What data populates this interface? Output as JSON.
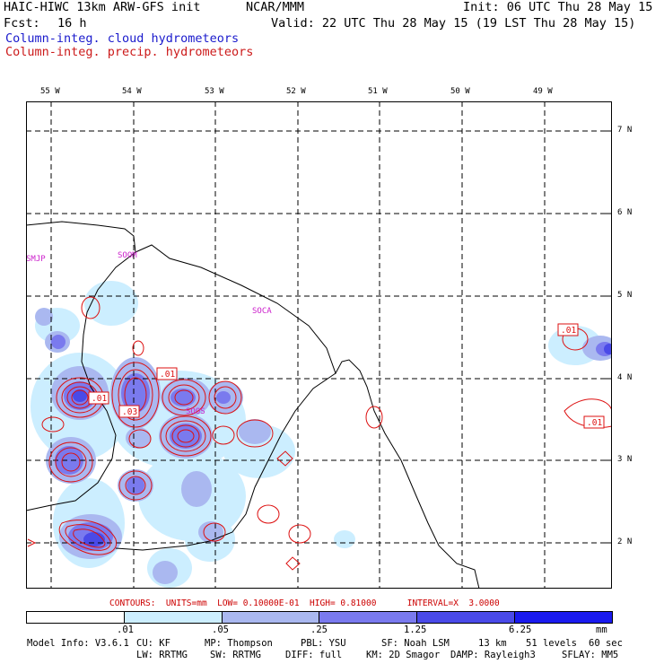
{
  "header": {
    "model": "HAIC-HIWC 13km ARW-GFS init",
    "org": "NCAR/MMM",
    "init": "Init: 06 UTC Thu 28 May 15",
    "fcst_label": "Fcst:",
    "fcst_value": "16 h",
    "valid": "Valid: 22 UTC Thu 28 May 15 (19 LST Thu 28 May 15)",
    "legend_cloud": "Column-integ. cloud hydrometeors",
    "legend_precip": "Column-integ. precip. hydrometeors",
    "cloud_color": "#1a1acc",
    "precip_color": "#cc1a1a"
  },
  "map": {
    "lon_labels": [
      "55 W",
      "54 W",
      "53 W",
      "52 W",
      "51 W",
      "50 W",
      "49 W"
    ],
    "lat_labels": [
      "7 N",
      "6 N",
      "5 N",
      "4 N",
      "3 N",
      "2 N"
    ],
    "place_labels": [
      "SMJP",
      "SOOM",
      "SOCA",
      "SOOS"
    ],
    "contour_labels": [
      ".01",
      ".01",
      ".03",
      ".01",
      ".01"
    ],
    "place_color": "#cc22cc",
    "contour_color": "#dd1111"
  },
  "contours_info": "CONTOURS:  UNITS=mm  LOW= 0.10000E-01  HIGH= 0.81000      INTERVAL=X  3.0000",
  "colorbar": {
    "labels": [
      ".01",
      ".05",
      ".25",
      "1.25",
      "6.25"
    ],
    "units": "mm",
    "colors": [
      "#ffffff",
      "#cceeff",
      "#aab8f0",
      "#7a7aee",
      "#4a4ae8",
      "#1a1aee"
    ]
  },
  "model_info": {
    "line1": [
      "Model Info: V3.6.1",
      "CU: KF",
      "MP: Thompson",
      "PBL: YSU",
      "SF: Noah LSM",
      "13 km",
      "51 levels",
      "60 sec"
    ],
    "line2": [
      "LW: RRTMG",
      "SW: RRTMG",
      "DIFF: full",
      "KM: 2D Smagor",
      "DAMP: Rayleigh3",
      "SFLAY: MM5"
    ]
  }
}
